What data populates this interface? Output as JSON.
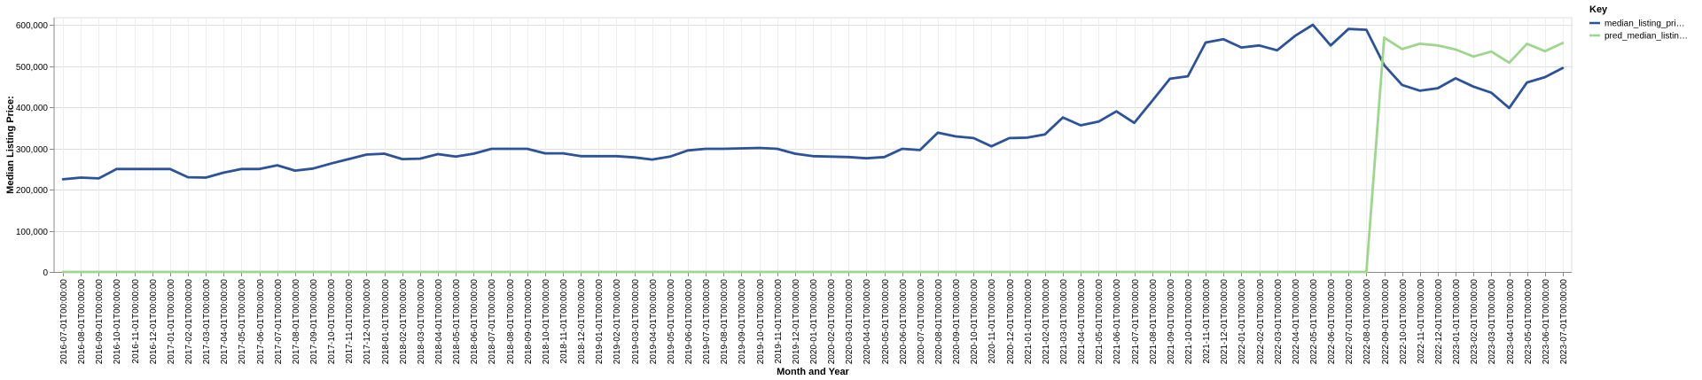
{
  "chart_data": {
    "type": "line",
    "xlabel": "Month and Year",
    "ylabel": "Median Listing Price:",
    "ylim": [
      0,
      600000
    ],
    "y_ticks": [
      0,
      100000,
      200000,
      300000,
      400000,
      500000,
      600000
    ],
    "y_tick_labels": [
      "0",
      "100,000",
      "200,000",
      "300,000",
      "400,000",
      "500,000",
      "600,000"
    ],
    "grid": true,
    "legend_title": "Key",
    "legend_position": "top-right",
    "x": [
      "2016-07-01T00:00:00",
      "2016-08-01T00:00:00",
      "2016-09-01T00:00:00",
      "2016-10-01T00:00:00",
      "2016-11-01T00:00:00",
      "2016-12-01T00:00:00",
      "2017-01-01T00:00:00",
      "2017-02-01T00:00:00",
      "2017-03-01T00:00:00",
      "2017-04-01T00:00:00",
      "2017-05-01T00:00:00",
      "2017-06-01T00:00:00",
      "2017-07-01T00:00:00",
      "2017-08-01T00:00:00",
      "2017-09-01T00:00:00",
      "2017-10-01T00:00:00",
      "2017-11-01T00:00:00",
      "2017-12-01T00:00:00",
      "2018-01-01T00:00:00",
      "2018-02-01T00:00:00",
      "2018-03-01T00:00:00",
      "2018-04-01T00:00:00",
      "2018-05-01T00:00:00",
      "2018-06-01T00:00:00",
      "2018-07-01T00:00:00",
      "2018-08-01T00:00:00",
      "2018-09-01T00:00:00",
      "2018-10-01T00:00:00",
      "2018-11-01T00:00:00",
      "2018-12-01T00:00:00",
      "2019-01-01T00:00:00",
      "2019-02-01T00:00:00",
      "2019-03-01T00:00:00",
      "2019-04-01T00:00:00",
      "2019-05-01T00:00:00",
      "2019-06-01T00:00:00",
      "2019-07-01T00:00:00",
      "2019-08-01T00:00:00",
      "2019-09-01T00:00:00",
      "2019-10-01T00:00:00",
      "2019-11-01T00:00:00",
      "2019-12-01T00:00:00",
      "2020-01-01T00:00:00",
      "2020-02-01T00:00:00",
      "2020-03-01T00:00:00",
      "2020-04-01T00:00:00",
      "2020-05-01T00:00:00",
      "2020-06-01T00:00:00",
      "2020-07-01T00:00:00",
      "2020-08-01T00:00:00",
      "2020-09-01T00:00:00",
      "2020-10-01T00:00:00",
      "2020-11-01T00:00:00",
      "2020-12-01T00:00:00",
      "2021-01-01T00:00:00",
      "2021-02-01T00:00:00",
      "2021-03-01T00:00:00",
      "2021-04-01T00:00:00",
      "2021-05-01T00:00:00",
      "2021-06-01T00:00:00",
      "2021-07-01T00:00:00",
      "2021-08-01T00:00:00",
      "2021-09-01T00:00:00",
      "2021-10-01T00:00:00",
      "2021-11-01T00:00:00",
      "2021-12-01T00:00:00",
      "2022-01-01T00:00:00",
      "2022-02-01T00:00:00",
      "2022-03-01T00:00:00",
      "2022-04-01T00:00:00",
      "2022-05-01T00:00:00",
      "2022-06-01T00:00:00",
      "2022-07-01T00:00:00",
      "2022-08-01T00:00:00",
      "2022-09-01T00:00:00",
      "2022-10-01T00:00:00",
      "2022-11-01T00:00:00",
      "2022-12-01T00:00:00",
      "2023-01-01T00:00:00",
      "2023-02-01T00:00:00",
      "2023-03-01T00:00:00",
      "2023-04-01T00:00:00",
      "2023-05-01T00:00:00",
      "2023-06-01T00:00:00",
      "2023-07-01T00:00:00"
    ],
    "series": [
      {
        "name": "median_listing_pri…",
        "color": "#2c5299",
        "values": [
          225000,
          229000,
          227000,
          250000,
          250000,
          250000,
          250000,
          230000,
          229000,
          241000,
          250000,
          250000,
          259000,
          246000,
          251000,
          263000,
          274000,
          285000,
          287000,
          274000,
          275000,
          286000,
          280000,
          287000,
          299000,
          299000,
          299000,
          288000,
          288000,
          281000,
          281000,
          281000,
          278000,
          273000,
          280000,
          295000,
          299000,
          299000,
          300000,
          301000,
          299000,
          287000,
          281000,
          280000,
          279000,
          276000,
          279000,
          299000,
          296000,
          338000,
          329000,
          325000,
          305000,
          325000,
          326000,
          334000,
          375000,
          356000,
          365000,
          390000,
          362000,
          415000,
          469000,
          475000,
          557000,
          565000,
          545000,
          550000,
          538000,
          573000,
          600000,
          550000,
          590000,
          588000,
          502000,
          454000,
          440000,
          446000,
          470000,
          450000,
          435000,
          398000,
          460000,
          473000,
          495000
        ]
      },
      {
        "name": "pred_median_listin…",
        "color": "#9ed68e",
        "values": [
          0,
          0,
          0,
          0,
          0,
          0,
          0,
          0,
          0,
          0,
          0,
          0,
          0,
          0,
          0,
          0,
          0,
          0,
          0,
          0,
          0,
          0,
          0,
          0,
          0,
          0,
          0,
          0,
          0,
          0,
          0,
          0,
          0,
          0,
          0,
          0,
          0,
          0,
          0,
          0,
          0,
          0,
          0,
          0,
          0,
          0,
          0,
          0,
          0,
          0,
          0,
          0,
          0,
          0,
          0,
          0,
          0,
          0,
          0,
          0,
          0,
          0,
          0,
          0,
          0,
          0,
          0,
          0,
          0,
          0,
          0,
          0,
          0,
          0,
          569000,
          541000,
          554000,
          550000,
          540000,
          523000,
          535000,
          508000,
          554000,
          536000,
          556000
        ]
      }
    ]
  }
}
